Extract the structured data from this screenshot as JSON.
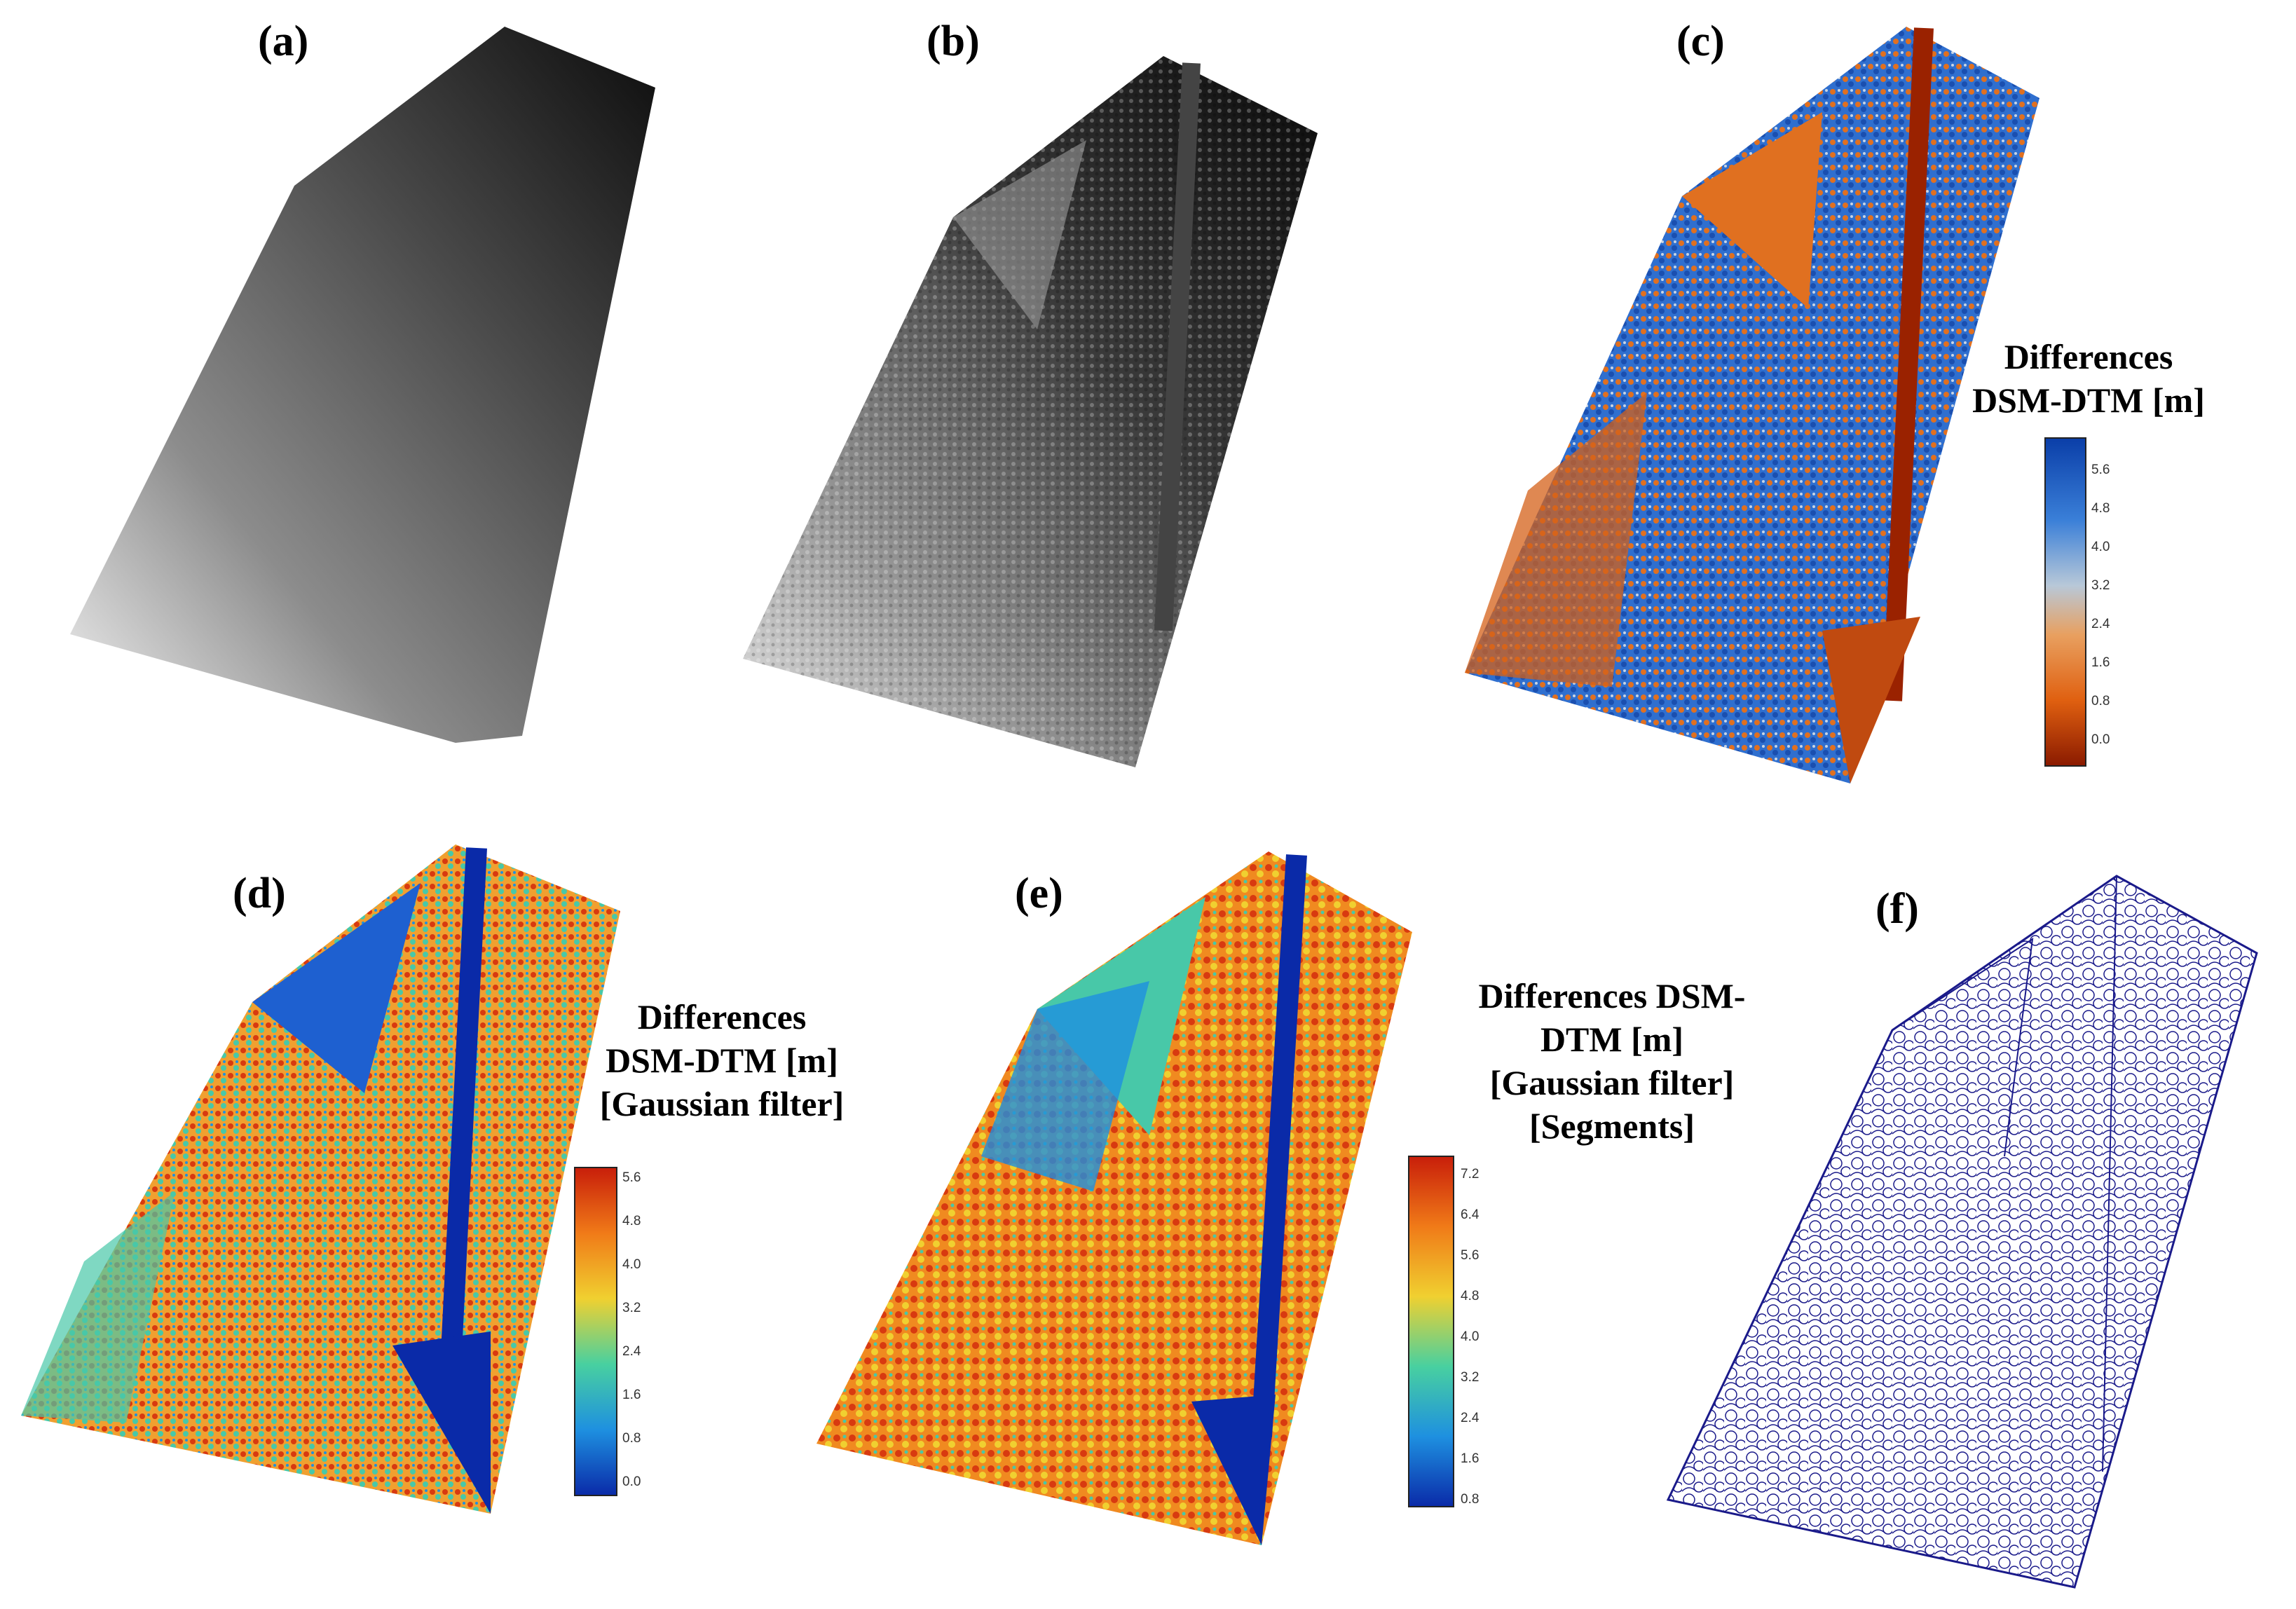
{
  "panels": [
    {
      "id": "a",
      "label": "(a)"
    },
    {
      "id": "b",
      "label": "(b)"
    },
    {
      "id": "c",
      "label": "(c)",
      "legend": {
        "title_lines": [
          "Differences",
          "DSM-DTM [m]"
        ],
        "ticks": [
          "5.6",
          "4.8",
          "4.0",
          "3.2",
          "2.4",
          "1.6",
          "0.8",
          "0.0"
        ],
        "colors": [
          "#0a3ea8",
          "#3a7fd8",
          "#b8c8d8",
          "#e8a060",
          "#e06010",
          "#8a1a00"
        ]
      }
    },
    {
      "id": "d",
      "label": "(d)",
      "legend": {
        "title_lines": [
          "Differences",
          "DSM-DTM [m]",
          "[Gaussian filter]"
        ],
        "ticks": [
          "5.6",
          "4.8",
          "4.0",
          "3.2",
          "2.4",
          "1.6",
          "0.8",
          "0.0"
        ],
        "colors": [
          "#c81e0a",
          "#f07a18",
          "#f0d030",
          "#48d0a0",
          "#1e90e0",
          "#0a2aa8"
        ]
      }
    },
    {
      "id": "e",
      "label": "(e)",
      "legend": {
        "title_lines": [
          "Differences DSM-",
          "DTM [m]",
          "[Gaussian filter]",
          "[Segments]"
        ],
        "ticks": [
          "7.2",
          "6.4",
          "5.6",
          "4.8",
          "4.0",
          "3.2",
          "2.4",
          "1.6",
          "0.8"
        ],
        "colors": [
          "#c81e0a",
          "#f07a18",
          "#f0d030",
          "#48d0a0",
          "#1e90e0",
          "#0a2aa8"
        ]
      }
    },
    {
      "id": "f",
      "label": "(f)"
    }
  ],
  "styles": {
    "a_colors": [
      "#111111",
      "#555555",
      "#b0b0b0",
      "#f4f4f4"
    ],
    "b_colors": [
      "#0a0a0a",
      "#2e2e2e",
      "#8a8a8a",
      "#e0e0e0"
    ],
    "c_colors": [
      "#8a1a00",
      "#d46018",
      "#3a7fd8",
      "#1a5ec0"
    ],
    "d_colors": [
      "#0a2aa8",
      "#1e90e0",
      "#48d0a0",
      "#f07a18"
    ],
    "e_colors": [
      "#0a2aa8",
      "#1e90e0",
      "#48d0a0",
      "#f0a020",
      "#d83a10"
    ],
    "f_line": "#1a1a8a"
  }
}
